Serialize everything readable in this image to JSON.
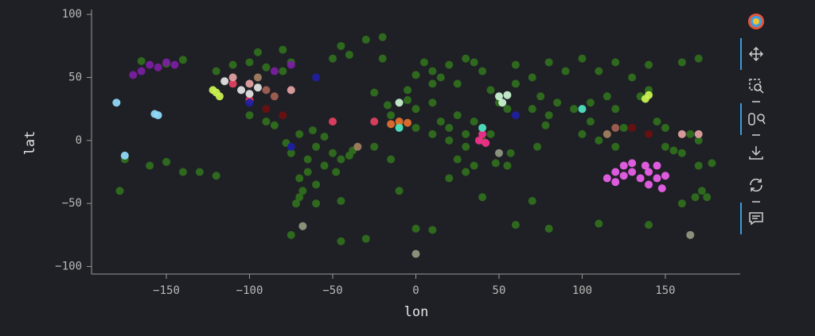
{
  "chart_data": {
    "type": "scatter",
    "x_label": "lon",
    "y_label": "lat",
    "xlim": [
      -195,
      195
    ],
    "ylim": [
      -106,
      102
    ],
    "xticks": [
      {
        "value": -150,
        "label": "−150"
      },
      {
        "value": -100,
        "label": "−100"
      },
      {
        "value": -50,
        "label": "−50"
      },
      0,
      50,
      100,
      150
    ],
    "yticks": [
      {
        "value": -100,
        "label": "−100"
      },
      {
        "value": -50,
        "label": "−50"
      },
      0,
      50,
      100
    ],
    "grid": false,
    "series": [
      {
        "color": "#2f6e1e",
        "x": [
          -165,
          -150,
          -140,
          -120,
          -110,
          -100,
          -90,
          -80,
          -75,
          -95,
          -80,
          -40,
          -50,
          -45,
          -30,
          -20,
          -60,
          -50,
          -45,
          -40,
          -55,
          -65,
          -70,
          -68,
          -72,
          -60,
          -48,
          -75,
          -78,
          -70,
          -62,
          -55,
          -38,
          -65,
          -60,
          -70,
          -90,
          -85,
          -100,
          0,
          10,
          20,
          30,
          25,
          30,
          20,
          35,
          40,
          15,
          -10,
          -15,
          35,
          45,
          25,
          10,
          0,
          -5,
          30,
          20,
          48,
          10,
          20,
          30,
          15,
          0,
          25,
          -5,
          10,
          40,
          35,
          5,
          60,
          80,
          100,
          120,
          140,
          160,
          170,
          90,
          110,
          130,
          70,
          60,
          75,
          85,
          95,
          105,
          115,
          120,
          105,
          100,
          110,
          120,
          125,
          135,
          140,
          80,
          78,
          70,
          50,
          45,
          55,
          150,
          155,
          -175,
          -160,
          -150,
          -140,
          -130,
          -178,
          -120,
          -75,
          -45,
          -30,
          0,
          10,
          60,
          80,
          110,
          140,
          160,
          -25,
          -15,
          -10,
          -45,
          40,
          70,
          55,
          57,
          73,
          -20,
          -25,
          -17,
          172,
          175,
          168,
          160,
          170,
          178,
          170,
          150,
          145,
          165
        ],
        "values": [
          63,
          61,
          64,
          55,
          60,
          62,
          58,
          55,
          62,
          70,
          72,
          68,
          65,
          75,
          80,
          82,
          -5,
          -10,
          -15,
          -12,
          -20,
          -25,
          -30,
          -40,
          -50,
          -35,
          -25,
          -10,
          -2,
          5,
          8,
          3,
          -8,
          -15,
          -50,
          -45,
          15,
          12,
          20,
          10,
          5,
          0,
          -5,
          -15,
          -25,
          -30,
          -20,
          0,
          15,
          12,
          20,
          15,
          5,
          20,
          30,
          25,
          32,
          5,
          10,
          -18,
          55,
          60,
          65,
          50,
          52,
          45,
          40,
          45,
          55,
          62,
          62,
          60,
          62,
          65,
          62,
          60,
          62,
          65,
          55,
          55,
          50,
          50,
          45,
          35,
          30,
          25,
          30,
          35,
          25,
          15,
          5,
          0,
          -5,
          10,
          35,
          40,
          20,
          12,
          25,
          30,
          40,
          25,
          -5,
          -8,
          -15,
          -20,
          -17,
          -25,
          -25,
          -40,
          -28,
          -75,
          -80,
          -78,
          -70,
          -71,
          -67,
          -70,
          -66,
          -67,
          -50,
          -5,
          -15,
          -40,
          -48,
          -45,
          -48,
          -20,
          -10,
          -5,
          65,
          38,
          28,
          -40,
          -45,
          -45,
          -10,
          -20,
          -18,
          0,
          10,
          15,
          5
        ]
      },
      {
        "color": "#7a1fa0",
        "x": [
          -165,
          -160,
          -155,
          -150,
          -145,
          -170,
          -85,
          -75
        ],
        "values": [
          55,
          60,
          58,
          62,
          60,
          52,
          55,
          60
        ]
      },
      {
        "color": "#e860e8",
        "x": [
          115,
          120,
          125,
          130,
          135,
          140,
          145,
          150,
          140,
          130,
          120,
          145,
          148,
          138,
          125
        ],
        "values": [
          -30,
          -25,
          -20,
          -25,
          -30,
          -25,
          -30,
          -28,
          -35,
          -18,
          -33,
          -20,
          -38,
          -20,
          -28
        ]
      },
      {
        "color": "#8fd8f8",
        "x": [
          -155,
          -157,
          -175,
          -180
        ],
        "values": [
          20,
          21,
          -12,
          30
        ]
      },
      {
        "color": "#c8f050",
        "x": [
          -120,
          -118,
          -122,
          138,
          140
        ],
        "values": [
          38,
          35,
          40,
          33,
          36
        ]
      },
      {
        "color": "#c8f0d0",
        "x": [
          50,
          55,
          52,
          -10
        ],
        "values": [
          35,
          36,
          30,
          30
        ]
      },
      {
        "color": "#f0308a",
        "x": [
          40,
          38,
          42
        ],
        "values": [
          5,
          0,
          -2
        ]
      },
      {
        "color": "#e07030",
        "x": [
          -10,
          -5,
          -15
        ],
        "values": [
          15,
          14,
          13
        ]
      },
      {
        "color": "#6a1010",
        "x": [
          -80,
          -90,
          130,
          140
        ],
        "values": [
          20,
          25,
          10,
          5
        ]
      },
      {
        "color": "#e04060",
        "x": [
          -110,
          -50,
          -25,
          -100
        ],
        "values": [
          45,
          15,
          15,
          32
        ]
      },
      {
        "color": "#e0a0a0",
        "x": [
          -100,
          -110,
          -75,
          160,
          170
        ],
        "values": [
          45,
          50,
          40,
          5,
          5
        ]
      },
      {
        "color": "#2020a0",
        "x": [
          -75,
          -100,
          -60,
          60
        ],
        "values": [
          -5,
          30,
          50,
          20
        ]
      },
      {
        "color": "#50e0c0",
        "x": [
          40,
          100,
          -10
        ],
        "values": [
          10,
          25,
          10
        ]
      },
      {
        "color": "#a08060",
        "x": [
          115,
          -95,
          -35
        ],
        "values": [
          5,
          50,
          -5
        ]
      },
      {
        "color": "#909880",
        "x": [
          0,
          -68,
          165,
          50
        ],
        "values": [
          -90,
          -68,
          -75,
          -10
        ]
      },
      {
        "color": "#e0e0e0",
        "x": [
          -105,
          -95,
          -115,
          -100
        ],
        "values": [
          40,
          42,
          47,
          37
        ]
      },
      {
        "color": "#a06050",
        "x": [
          -90,
          -85,
          120
        ],
        "values": [
          40,
          35,
          10
        ]
      }
    ]
  }
}
